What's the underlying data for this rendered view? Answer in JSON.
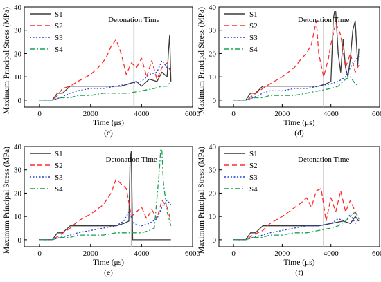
{
  "figure": {
    "colors": {
      "S1": "#3a3a3a",
      "S2": "#ff2a2a",
      "S3": "#1f3fd8",
      "S4": "#1a9e50",
      "detonation_line": "#bbbbbb"
    }
  },
  "chart_data": [
    {
      "type": "line",
      "panel_label": "(c)",
      "xlabel": "Time (μs)",
      "ylabel": "Maximum Principal Stress (MPa)",
      "xlim": [
        -600,
        6000
      ],
      "ylim": [
        -3,
        40
      ],
      "xticks": [
        0,
        2000,
        4000,
        6000
      ],
      "yticks": [
        0,
        10,
        20,
        30,
        40
      ],
      "grid": false,
      "legend_position": "top-left",
      "annotation": {
        "text": "Detonation Time",
        "x": 3700
      },
      "series": [
        {
          "name": "S1",
          "style": "solid",
          "color": "#3a3a3a",
          "x": [
            0,
            500,
            700,
            900,
            1200,
            1500,
            2000,
            2500,
            3000,
            3200,
            3500,
            3800,
            4000,
            4300,
            4600,
            4800,
            5000,
            5050,
            5100,
            5150
          ],
          "y": [
            0,
            0,
            3,
            3,
            6,
            6,
            6,
            6,
            6,
            6,
            7,
            8,
            6,
            9,
            8,
            12,
            10,
            20,
            28,
            8
          ]
        },
        {
          "name": "S2",
          "style": "dashed",
          "color": "#ff2a2a",
          "x": [
            0,
            500,
            700,
            900,
            1200,
            1500,
            2000,
            2300,
            2600,
            2800,
            3000,
            3200,
            3400,
            3600,
            3800,
            4000,
            4200,
            4400,
            4600,
            4800,
            5000,
            5150
          ],
          "y": [
            0,
            0,
            2,
            5,
            6,
            8,
            11,
            14,
            18,
            23,
            26,
            20,
            11,
            16,
            14,
            18,
            10,
            17,
            9,
            14,
            16,
            12
          ]
        },
        {
          "name": "S3",
          "style": "dotted",
          "color": "#1f3fd8",
          "x": [
            0,
            500,
            800,
            1200,
            1500,
            2000,
            2500,
            3000,
            3500,
            4000,
            4300,
            4600,
            4800,
            5000,
            5150
          ],
          "y": [
            0,
            0,
            1,
            3,
            4,
            5,
            5,
            6,
            7,
            8,
            11,
            12,
            17,
            14,
            13
          ]
        },
        {
          "name": "S4",
          "style": "dashdot",
          "color": "#1a9e50",
          "x": [
            0,
            500,
            800,
            1200,
            1500,
            2000,
            2500,
            3000,
            3500,
            4000,
            4500,
            4800,
            5000,
            5150
          ],
          "y": [
            0,
            0,
            1,
            1,
            2,
            2,
            3,
            3,
            3,
            4,
            5,
            6,
            6,
            8
          ]
        }
      ]
    },
    {
      "type": "line",
      "panel_label": "(d)",
      "xlabel": "Time (μs)",
      "ylabel": "Maximum Principal Stress (MPa)",
      "xlim": [
        -600,
        6000
      ],
      "ylim": [
        -3,
        40
      ],
      "xticks": [
        0,
        2000,
        4000,
        6000
      ],
      "yticks": [
        0,
        10,
        20,
        30,
        40
      ],
      "grid": false,
      "legend_position": "top-left",
      "annotation": {
        "text": "Detonation Time",
        "x": 3700
      },
      "series": [
        {
          "name": "S1",
          "style": "solid",
          "color": "#3a3a3a",
          "x": [
            0,
            500,
            700,
            900,
            1200,
            1500,
            2000,
            2500,
            3000,
            3500,
            3800,
            4000,
            4100,
            4150,
            4200,
            4300,
            4400,
            4500,
            4600,
            4700,
            4800,
            4900,
            5000,
            5100,
            5150
          ],
          "y": [
            0,
            0,
            3,
            3,
            6,
            6,
            6,
            6,
            6,
            6,
            7,
            8,
            35,
            38,
            38,
            20,
            12,
            26,
            14,
            10,
            18,
            30,
            34,
            15,
            22
          ]
        },
        {
          "name": "S2",
          "style": "dashed",
          "color": "#ff2a2a",
          "x": [
            0,
            500,
            800,
            1200,
            1500,
            2000,
            2500,
            2800,
            3000,
            3200,
            3400,
            3500,
            3700,
            3900,
            4000,
            4200,
            4400,
            4600,
            4800,
            5000,
            5150
          ],
          "y": [
            0,
            0,
            2,
            5,
            7,
            10,
            14,
            18,
            20,
            24,
            34,
            20,
            10,
            18,
            24,
            33,
            28,
            14,
            20,
            12,
            15
          ]
        },
        {
          "name": "S3",
          "style": "dotted",
          "color": "#1f3fd8",
          "x": [
            0,
            500,
            800,
            1200,
            1500,
            2000,
            2500,
            3000,
            3500,
            4000,
            4300,
            4600,
            4800,
            5000,
            5150
          ],
          "y": [
            0,
            0,
            1,
            3,
            4,
            4,
            5,
            5,
            6,
            7,
            8,
            10,
            14,
            17,
            19
          ]
        },
        {
          "name": "S4",
          "style": "dashdot",
          "color": "#1a9e50",
          "x": [
            0,
            500,
            800,
            1200,
            1500,
            2000,
            2500,
            3000,
            3500,
            4000,
            4300,
            4600,
            4800,
            5000,
            5150
          ],
          "y": [
            0,
            0,
            1,
            1,
            2,
            2,
            2,
            3,
            4,
            5,
            6,
            9,
            10,
            7,
            6
          ]
        }
      ]
    },
    {
      "type": "line",
      "panel_label": "(e)",
      "xlabel": "Time (μs)",
      "ylabel": "Maximum Principal Stress (MPa)",
      "xlim": [
        -600,
        6000
      ],
      "ylim": [
        -3,
        40
      ],
      "xticks": [
        0,
        2000,
        4000,
        6000
      ],
      "yticks": [
        0,
        10,
        20,
        30,
        40
      ],
      "grid": false,
      "legend_position": "top-left",
      "annotation": {
        "text": "Detonation Time",
        "x": 3600
      },
      "series": [
        {
          "name": "S1",
          "style": "solid",
          "color": "#3a3a3a",
          "x": [
            0,
            500,
            700,
            900,
            1200,
            1500,
            2000,
            2500,
            3000,
            3300,
            3500,
            3550,
            3600,
            3650,
            3700,
            4000,
            4500,
            5000,
            5150
          ],
          "y": [
            0,
            0,
            3,
            3,
            6,
            6,
            6,
            6,
            6,
            7,
            8,
            35,
            38,
            0,
            0,
            0,
            0,
            0,
            0
          ]
        },
        {
          "name": "S2",
          "style": "dashed",
          "color": "#ff2a2a",
          "x": [
            0,
            500,
            800,
            1200,
            1500,
            2000,
            2500,
            2800,
            3000,
            3200,
            3400,
            3600,
            3800,
            4000,
            4200,
            4400,
            4600,
            4800,
            5000,
            5150
          ],
          "y": [
            0,
            0,
            2,
            5,
            8,
            11,
            15,
            20,
            26,
            24,
            22,
            10,
            12,
            14,
            9,
            13,
            9,
            17,
            14,
            8
          ]
        },
        {
          "name": "S3",
          "style": "dotted",
          "color": "#1f3fd8",
          "x": [
            0,
            500,
            800,
            1200,
            1500,
            2000,
            2500,
            3000,
            3300,
            3500,
            3700,
            4000,
            4300,
            4600,
            4800,
            5000,
            5150
          ],
          "y": [
            0,
            0,
            1,
            2,
            3,
            4,
            5,
            6,
            8,
            12,
            7,
            6,
            7,
            9,
            14,
            17,
            15
          ]
        },
        {
          "name": "S4",
          "style": "dashdot",
          "color": "#1a9e50",
          "x": [
            0,
            500,
            800,
            1200,
            1500,
            2000,
            2500,
            3000,
            3500,
            4000,
            4300,
            4500,
            4700,
            4750,
            4800,
            4850,
            5000,
            5150
          ],
          "y": [
            0,
            0,
            1,
            1,
            2,
            2,
            2,
            3,
            3,
            3,
            4,
            5,
            30,
            39,
            38,
            25,
            12,
            6
          ]
        }
      ]
    },
    {
      "type": "line",
      "panel_label": "(f)",
      "xlabel": "Time (μs)",
      "ylabel": "Maximum Principal Stress (MPa)",
      "xlim": [
        -600,
        6000
      ],
      "ylim": [
        -3,
        40
      ],
      "xticks": [
        0,
        2000,
        4000,
        6000
      ],
      "yticks": [
        0,
        10,
        20,
        30,
        40
      ],
      "grid": false,
      "legend_position": "top-left",
      "annotation": {
        "text": "Detonation Time",
        "x": 3700
      },
      "series": [
        {
          "name": "S1",
          "style": "solid",
          "color": "#3a3a3a",
          "x": [
            0,
            500,
            700,
            900,
            1200,
            1500,
            2000,
            2500,
            3000,
            3500,
            4000,
            4500,
            4800,
            5000,
            5150
          ],
          "y": [
            0,
            0,
            3,
            3,
            6,
            6,
            6,
            6,
            6,
            6,
            7,
            8,
            7,
            10,
            8
          ]
        },
        {
          "name": "S2",
          "style": "dashed",
          "color": "#ff2a2a",
          "x": [
            0,
            500,
            800,
            1200,
            1500,
            2000,
            2400,
            2800,
            3000,
            3200,
            3400,
            3600,
            3800,
            4000,
            4200,
            4400,
            4600,
            4800,
            5000,
            5150
          ],
          "y": [
            0,
            0,
            2,
            4,
            7,
            10,
            13,
            16,
            18,
            14,
            21,
            22,
            8,
            18,
            12,
            21,
            12,
            17,
            12,
            9
          ]
        },
        {
          "name": "S3",
          "style": "dotted",
          "color": "#1f3fd8",
          "x": [
            0,
            500,
            800,
            1200,
            1500,
            2000,
            2500,
            3000,
            3500,
            4000,
            4300,
            4600,
            4800,
            5000,
            5150
          ],
          "y": [
            0,
            0,
            1,
            2,
            3,
            4,
            5,
            6,
            6,
            7,
            9,
            8,
            11,
            7,
            9
          ]
        },
        {
          "name": "S4",
          "style": "dashdot",
          "color": "#1a9e50",
          "x": [
            0,
            500,
            800,
            1200,
            1500,
            2000,
            2500,
            3000,
            3500,
            4000,
            4300,
            4600,
            4800,
            5000,
            5150
          ],
          "y": [
            0,
            0,
            1,
            1,
            2,
            2,
            3,
            3,
            4,
            5,
            6,
            8,
            10,
            12,
            9
          ]
        }
      ]
    }
  ]
}
